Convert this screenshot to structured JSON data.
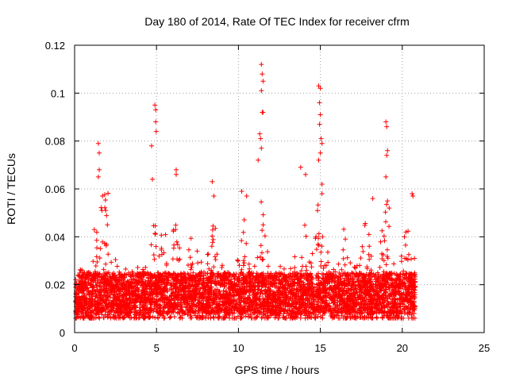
{
  "chart_data": {
    "type": "scatter",
    "title": "Day 180 of 2014, Rate Of TEC Index for receiver cfrm",
    "xlabel": "GPS time / hours",
    "ylabel": "ROTI / TECUs",
    "xlim": [
      0,
      25
    ],
    "ylim": [
      0,
      0.12
    ],
    "x_ticks": [
      0,
      5,
      10,
      15,
      20,
      25
    ],
    "x_tick_labels": [
      "0",
      "5",
      "10",
      "15",
      "20",
      "25"
    ],
    "y_ticks": [
      0,
      0.02,
      0.04,
      0.06,
      0.08,
      0.1,
      0.12
    ],
    "y_tick_labels": [
      "0",
      "0.02",
      "0.04",
      "0.06",
      "0.08",
      "0.1",
      "0.12"
    ],
    "grid": true,
    "marker": "+",
    "marker_color": "#ff0000",
    "data_range_x": [
      0,
      20.8
    ],
    "baseline_y": [
      0.008,
      0.025
    ],
    "notable_points": [
      {
        "x": 1.2,
        "y": 0.043
      },
      {
        "x": 1.45,
        "y": 0.079
      },
      {
        "x": 1.5,
        "y": 0.075
      },
      {
        "x": 1.5,
        "y": 0.068
      },
      {
        "x": 1.45,
        "y": 0.065
      },
      {
        "x": 1.7,
        "y": 0.057
      },
      {
        "x": 1.9,
        "y": 0.051
      },
      {
        "x": 2.0,
        "y": 0.045
      },
      {
        "x": 4.7,
        "y": 0.078
      },
      {
        "x": 4.75,
        "y": 0.064
      },
      {
        "x": 4.9,
        "y": 0.095
      },
      {
        "x": 4.95,
        "y": 0.093
      },
      {
        "x": 4.95,
        "y": 0.088
      },
      {
        "x": 4.98,
        "y": 0.084
      },
      {
        "x": 6.2,
        "y": 0.068
      },
      {
        "x": 6.2,
        "y": 0.066
      },
      {
        "x": 8.4,
        "y": 0.063
      },
      {
        "x": 8.5,
        "y": 0.057
      },
      {
        "x": 10.2,
        "y": 0.059
      },
      {
        "x": 10.5,
        "y": 0.057
      },
      {
        "x": 11.4,
        "y": 0.112
      },
      {
        "x": 11.45,
        "y": 0.108
      },
      {
        "x": 11.5,
        "y": 0.105
      },
      {
        "x": 11.4,
        "y": 0.101
      },
      {
        "x": 11.5,
        "y": 0.092
      },
      {
        "x": 11.45,
        "y": 0.092
      },
      {
        "x": 11.3,
        "y": 0.083
      },
      {
        "x": 11.35,
        "y": 0.081
      },
      {
        "x": 11.4,
        "y": 0.077
      },
      {
        "x": 11.2,
        "y": 0.072
      },
      {
        "x": 13.8,
        "y": 0.069
      },
      {
        "x": 14.1,
        "y": 0.066
      },
      {
        "x": 14.9,
        "y": 0.103
      },
      {
        "x": 15.0,
        "y": 0.102
      },
      {
        "x": 14.95,
        "y": 0.096
      },
      {
        "x": 15.0,
        "y": 0.091
      },
      {
        "x": 14.95,
        "y": 0.087
      },
      {
        "x": 15.05,
        "y": 0.081
      },
      {
        "x": 15.1,
        "y": 0.079
      },
      {
        "x": 15.0,
        "y": 0.075
      },
      {
        "x": 14.9,
        "y": 0.072
      },
      {
        "x": 15.1,
        "y": 0.062
      },
      {
        "x": 15.1,
        "y": 0.058
      },
      {
        "x": 18.2,
        "y": 0.056
      },
      {
        "x": 19.0,
        "y": 0.088
      },
      {
        "x": 19.05,
        "y": 0.086
      },
      {
        "x": 19.1,
        "y": 0.076
      },
      {
        "x": 19.05,
        "y": 0.074
      },
      {
        "x": 19.0,
        "y": 0.065
      },
      {
        "x": 19.1,
        "y": 0.055
      },
      {
        "x": 19.2,
        "y": 0.052
      },
      {
        "x": 20.6,
        "y": 0.058
      },
      {
        "x": 20.65,
        "y": 0.057
      }
    ]
  }
}
